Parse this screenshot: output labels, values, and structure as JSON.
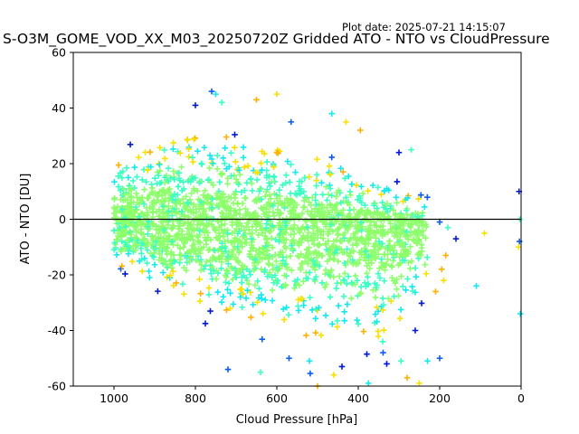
{
  "plot_date": "Plot date: 2025-07-21 14:15:07",
  "chart_data": {
    "type": "scatter",
    "title": "S-O3M_GOME_VOD_XX_M03_20250720Z Gridded ATO - NTO vs CloudPressure",
    "xlabel": "Cloud Pressure [hPa]",
    "ylabel": "ATO - NTO [DU]",
    "xlim": [
      1100,
      0
    ],
    "ylim": [
      -60,
      60
    ],
    "x_ticks": [
      1000,
      800,
      600,
      400,
      200,
      0
    ],
    "y_ticks": [
      60,
      40,
      20,
      0,
      -20,
      -40,
      -60
    ],
    "x_inverted": true,
    "zero_line": 0,
    "marker": "+",
    "color_map": "jet (point density)",
    "colors": {
      "core": "#8cff6a",
      "mid": "#3cffc4",
      "cyan": "#14e8f0",
      "edge_blue": "#0a5cf5",
      "edge_dark": "#0018d8",
      "yellow": "#f8e000",
      "orange": "#ffb000"
    },
    "distribution": {
      "pressure_range": [
        1000,
        230
      ],
      "center_dU": [
        [
          1000,
          0
        ],
        [
          800,
          -2
        ],
        [
          600,
          -3
        ],
        [
          400,
          -4
        ],
        [
          250,
          -6
        ]
      ],
      "upper_edge_dU": [
        [
          1000,
          21
        ],
        [
          900,
          33
        ],
        [
          800,
          35
        ],
        [
          700,
          32
        ],
        [
          600,
          29
        ],
        [
          500,
          25
        ],
        [
          400,
          21
        ],
        [
          300,
          14
        ],
        [
          230,
          8
        ]
      ],
      "lower_edge_dU": [
        [
          1000,
          -18
        ],
        [
          900,
          -25
        ],
        [
          800,
          -33
        ],
        [
          700,
          -40
        ],
        [
          600,
          -44
        ],
        [
          500,
          -48
        ],
        [
          400,
          -50
        ],
        [
          300,
          -45
        ],
        [
          230,
          -22
        ]
      ]
    },
    "outliers": [
      {
        "x": 760,
        "y": 46
      },
      {
        "x": 750,
        "y": 45
      },
      {
        "x": 600,
        "y": 45
      },
      {
        "x": 650,
        "y": 43
      },
      {
        "x": 800,
        "y": 41
      },
      {
        "x": 735,
        "y": 42
      },
      {
        "x": 565,
        "y": 35
      },
      {
        "x": 465,
        "y": 38
      },
      {
        "x": 430,
        "y": 35
      },
      {
        "x": 395,
        "y": 32
      },
      {
        "x": 300,
        "y": 24
      },
      {
        "x": 270,
        "y": 25
      },
      {
        "x": 570,
        "y": -50
      },
      {
        "x": 520,
        "y": -51
      },
      {
        "x": 460,
        "y": -56
      },
      {
        "x": 500,
        "y": -60
      },
      {
        "x": 440,
        "y": -53
      },
      {
        "x": 640,
        "y": -55
      },
      {
        "x": 720,
        "y": -54
      },
      {
        "x": 375,
        "y": -59
      },
      {
        "x": 250,
        "y": -59
      },
      {
        "x": 280,
        "y": -57
      },
      {
        "x": 330,
        "y": -52
      },
      {
        "x": 295,
        "y": -51
      },
      {
        "x": 200,
        "y": -50
      },
      {
        "x": 230,
        "y": -51
      },
      {
        "x": 190,
        "y": -22
      },
      {
        "x": 210,
        "y": -26
      },
      {
        "x": 160,
        "y": -7
      },
      {
        "x": 180,
        "y": -3
      },
      {
        "x": 200,
        "y": -1
      },
      {
        "x": 110,
        "y": -24
      },
      {
        "x": 90,
        "y": -5
      },
      {
        "x": 185,
        "y": -13
      },
      {
        "x": 5,
        "y": 10
      },
      {
        "x": 3,
        "y": 0
      },
      {
        "x": 4,
        "y": -8
      },
      {
        "x": 2,
        "y": -34
      },
      {
        "x": 6,
        "y": -10
      },
      {
        "x": 195,
        "y": -18
      },
      {
        "x": 260,
        "y": -40
      },
      {
        "x": 340,
        "y": -44
      }
    ]
  }
}
